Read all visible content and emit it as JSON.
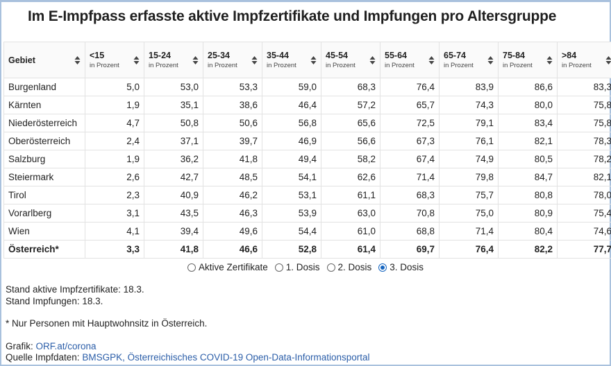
{
  "header": {
    "title": "Im E-Impfpass erfasste aktive Impfzertifikate und Impfungen pro Altersgruppe"
  },
  "table": {
    "columns": [
      {
        "label": "Gebiet"
      },
      {
        "label": "<15",
        "sublabel": "in Prozent"
      },
      {
        "label": "15-24",
        "sublabel": "in Prozent"
      },
      {
        "label": "25-34",
        "sublabel": "in Prozent"
      },
      {
        "label": "35-44",
        "sublabel": "in Prozent"
      },
      {
        "label": "45-54",
        "sublabel": "in Prozent"
      },
      {
        "label": "55-64",
        "sublabel": "in Prozent"
      },
      {
        "label": "65-74",
        "sublabel": "in Prozent"
      },
      {
        "label": "75-84",
        "sublabel": "in Prozent"
      },
      {
        "label": ">84",
        "sublabel": "in Prozent"
      }
    ],
    "rows": [
      [
        "Burgenland",
        "5,0",
        "53,0",
        "53,3",
        "59,0",
        "68,3",
        "76,4",
        "83,9",
        "86,6",
        "83,3"
      ],
      [
        "Kärnten",
        "1,9",
        "35,1",
        "38,6",
        "46,4",
        "57,2",
        "65,7",
        "74,3",
        "80,0",
        "75,8"
      ],
      [
        "Niederösterreich",
        "4,7",
        "50,8",
        "50,6",
        "56,8",
        "65,6",
        "72,5",
        "79,1",
        "83,4",
        "75,8"
      ],
      [
        "Oberösterreich",
        "2,4",
        "37,1",
        "39,7",
        "46,9",
        "56,6",
        "67,3",
        "76,1",
        "82,1",
        "78,3"
      ],
      [
        "Salzburg",
        "1,9",
        "36,2",
        "41,8",
        "49,4",
        "58,2",
        "67,4",
        "74,9",
        "80,5",
        "78,2"
      ],
      [
        "Steiermark",
        "2,6",
        "42,7",
        "48,5",
        "54,1",
        "62,6",
        "71,4",
        "79,8",
        "84,7",
        "82,1"
      ],
      [
        "Tirol",
        "2,3",
        "40,9",
        "46,2",
        "53,1",
        "61,1",
        "68,3",
        "75,7",
        "80,8",
        "78,0"
      ],
      [
        "Vorarlberg",
        "3,1",
        "43,5",
        "46,3",
        "53,9",
        "63,0",
        "70,8",
        "75,0",
        "80,9",
        "75,4"
      ],
      [
        "Wien",
        "4,1",
        "39,4",
        "49,6",
        "54,4",
        "61,0",
        "68,8",
        "71,4",
        "80,4",
        "74,6"
      ]
    ],
    "total_row": [
      "Österreich*",
      "3,3",
      "41,8",
      "46,6",
      "52,8",
      "61,4",
      "69,7",
      "76,4",
      "82,2",
      "77,7"
    ]
  },
  "options": {
    "items": [
      "Aktive Zertifikate",
      "1. Dosis",
      "2. Dosis",
      "3. Dosis"
    ],
    "selected": 3
  },
  "notes": {
    "stand_certificates": "Stand aktive Impfzertifikate: 18.3.",
    "stand_vaccinations": "Stand Impfungen: 18.3.",
    "footnote": "* Nur Personen mit Hauptwohnsitz in Österreich.",
    "graphic_label": "Grafik:",
    "graphic_link": "ORF.at/corona",
    "source_label": "Quelle Impfdaten:",
    "source_link": "BMSGPK, Österreichisches COVID-19 Open-Data-Informationsportal"
  }
}
